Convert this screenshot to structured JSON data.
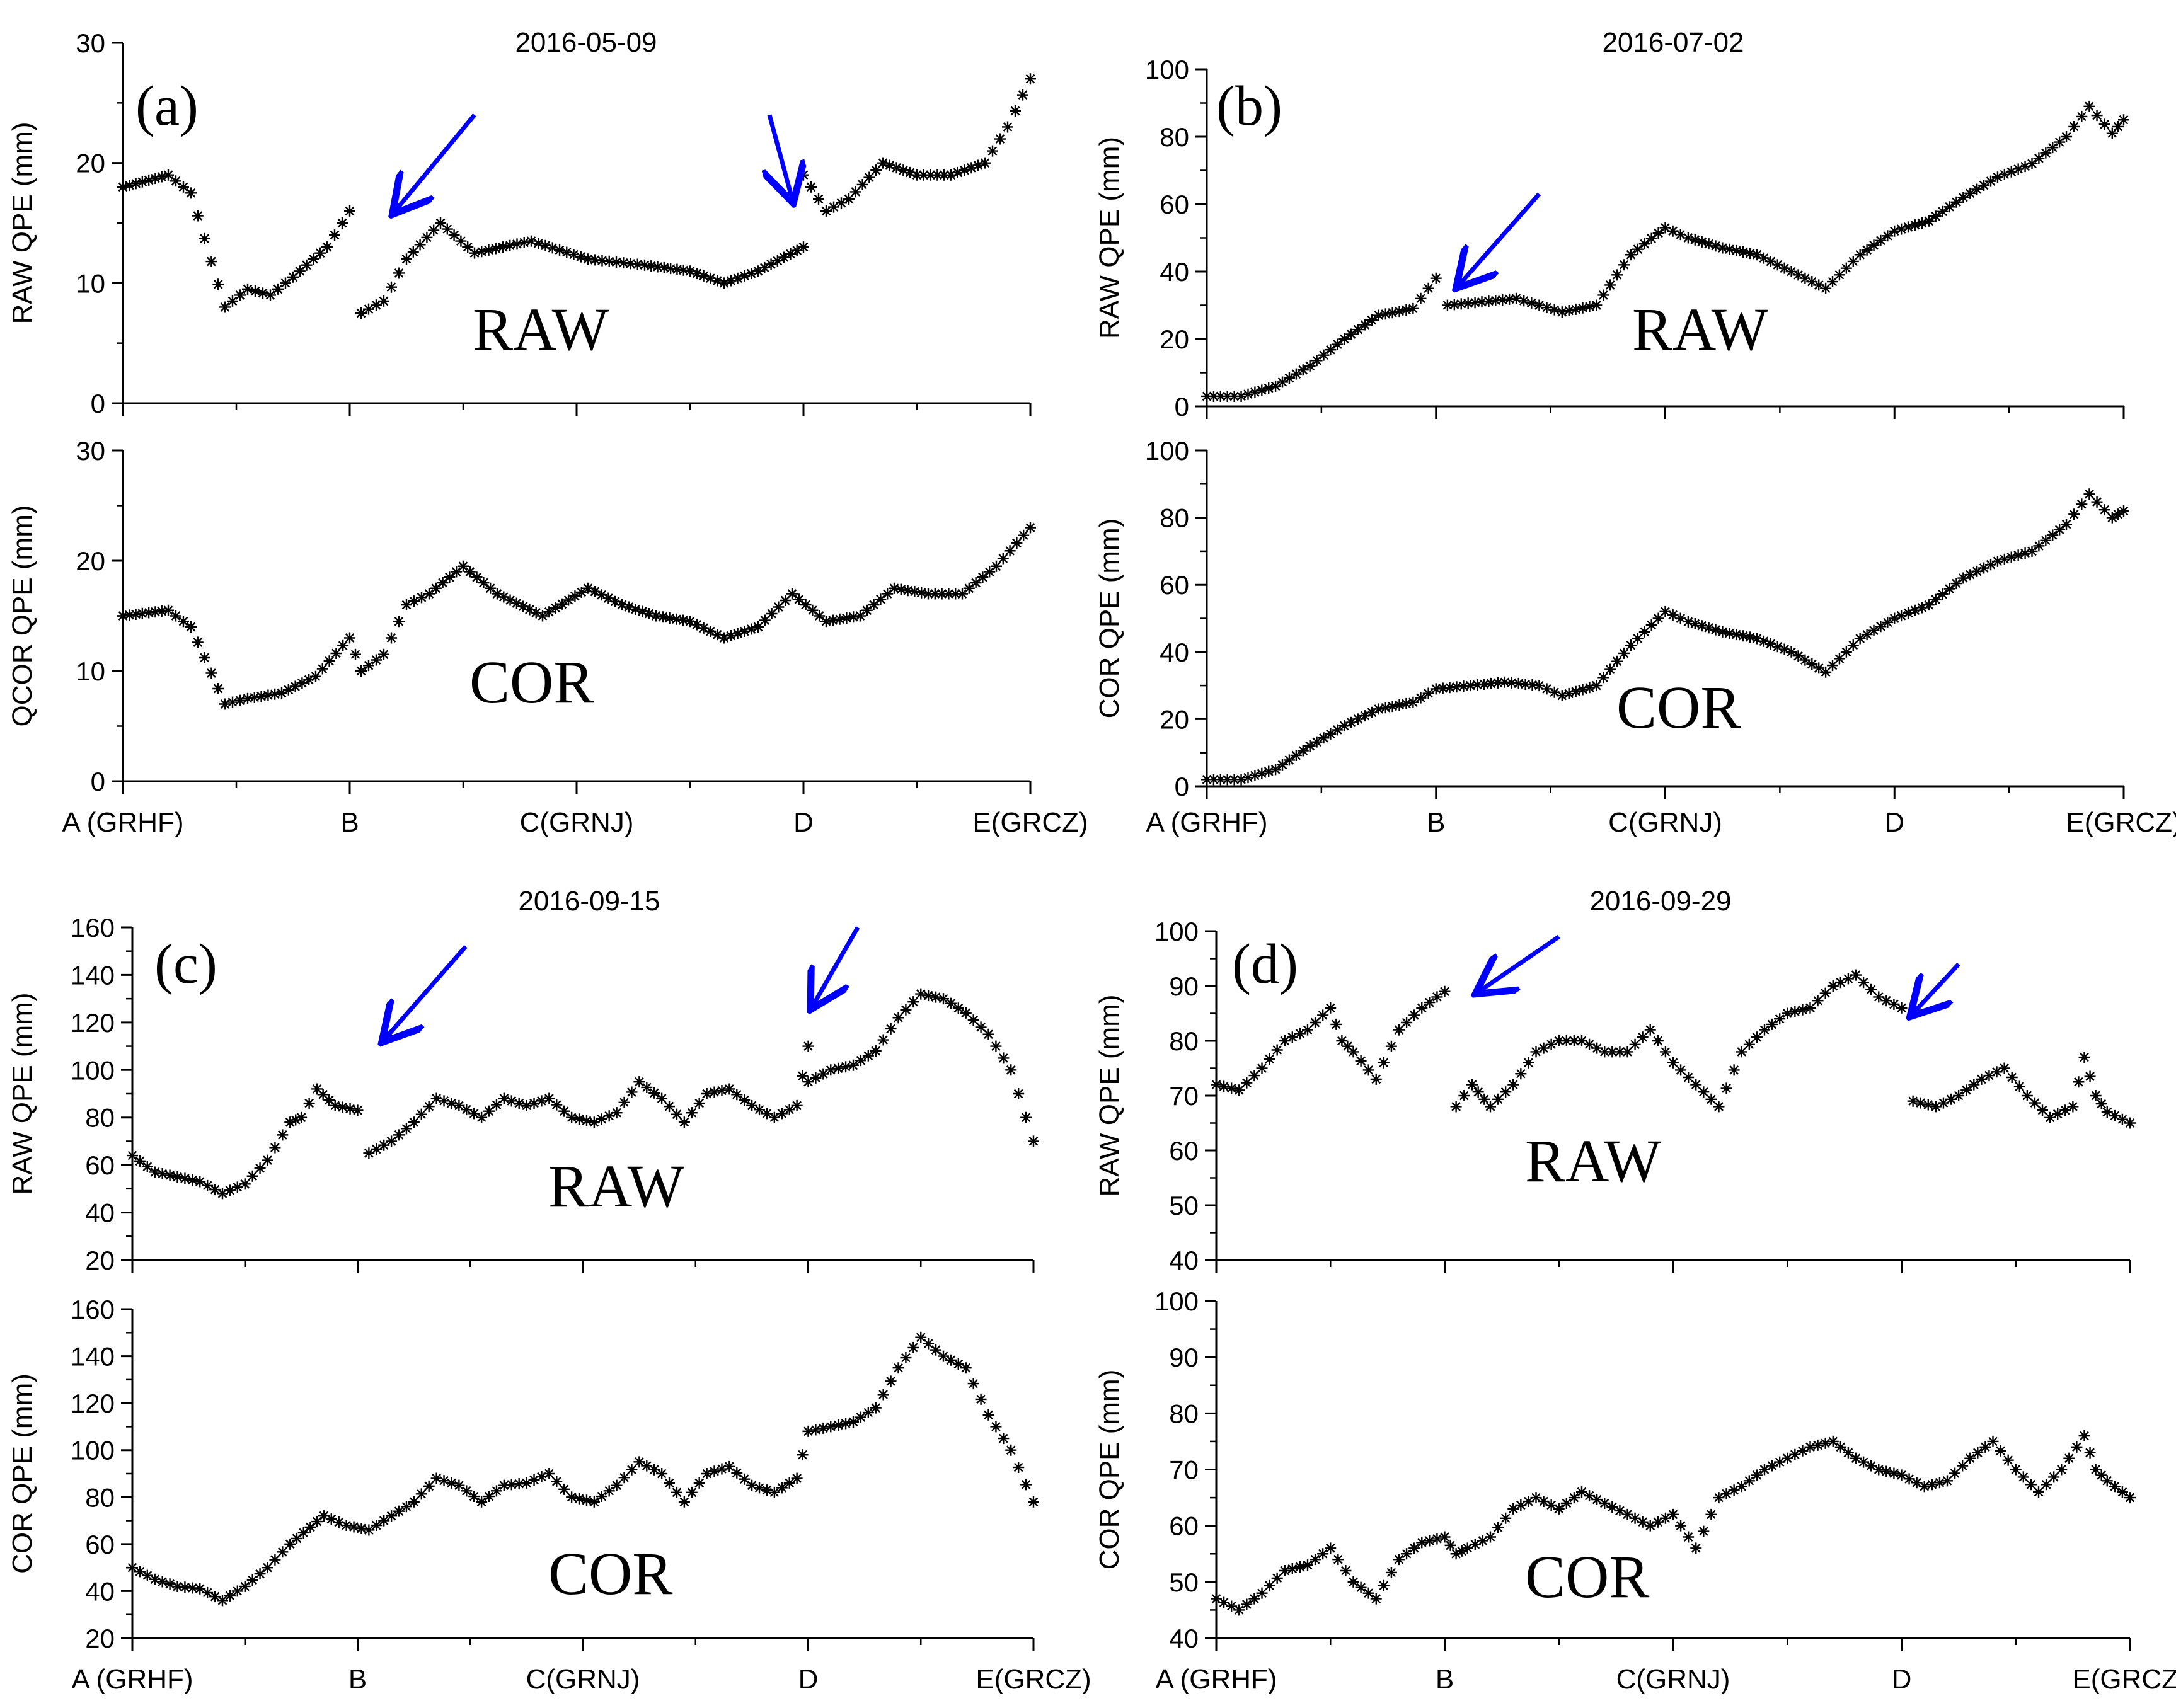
{
  "figure": {
    "arrow_color": "#0000ff",
    "marker_color": "#000000",
    "marker_symbol": "asterisk"
  },
  "chart_data": [
    {
      "id": "a",
      "panel_label": "(a)",
      "title": "2016-05-09",
      "x_ticks": [
        "A (GRHF)",
        "B",
        "C(GRNJ)",
        "D",
        "E(GRCZ)"
      ],
      "subplots": [
        {
          "type": "scatter",
          "series_label": "RAW",
          "ylabel": "RAW QPE (mm)",
          "ylim": [
            0,
            30
          ],
          "y_ticks": [
            0,
            10,
            20,
            30
          ],
          "arrows": [
            {
              "from": [
                1.55,
                24
              ],
              "to": [
                1.2,
                16
              ]
            },
            {
              "from": [
                2.85,
                24
              ],
              "to": [
                2.95,
                17
              ]
            }
          ],
          "series": [
            {
              "name": "A-B",
              "x": [
                0,
                0.2,
                0.3,
                0.45,
                0.55,
                0.65,
                0.75,
                0.9,
                1.0
              ],
              "y": [
                18,
                19,
                17.5,
                8,
                9.5,
                9,
                10.5,
                13,
                16
              ]
            },
            {
              "name": "B-D",
              "x": [
                1.05,
                1.15,
                1.25,
                1.4,
                1.55,
                1.8,
                2.05,
                2.3,
                2.5,
                2.65,
                2.8,
                3.0
              ],
              "y": [
                7.5,
                8.5,
                12,
                15,
                12.5,
                13.5,
                12,
                11.5,
                11,
                10,
                11,
                13
              ]
            },
            {
              "name": "D-E",
              "x": [
                3.0,
                3.1,
                3.2,
                3.35,
                3.5,
                3.65,
                3.8,
                3.9,
                4.0
              ],
              "y": [
                19,
                16,
                17,
                20,
                19,
                19,
                20,
                23,
                27
              ]
            }
          ]
        },
        {
          "type": "scatter",
          "series_label": "COR",
          "ylabel": "QCOR QPE (mm)",
          "ylim": [
            0,
            30
          ],
          "y_ticks": [
            0,
            10,
            20,
            30
          ],
          "arrows": [],
          "series": [
            {
              "name": "all",
              "x": [
                0,
                0.2,
                0.3,
                0.45,
                0.55,
                0.7,
                0.85,
                1.0,
                1.05,
                1.15,
                1.25,
                1.35,
                1.5,
                1.65,
                1.85,
                2.05,
                2.2,
                2.35,
                2.5,
                2.65,
                2.8,
                2.95,
                3.1,
                3.25,
                3.4,
                3.55,
                3.7,
                3.85,
                4.0
              ],
              "y": [
                15,
                15.5,
                14,
                7,
                7.5,
                8,
                9.5,
                13,
                10,
                11.5,
                16,
                17,
                19.5,
                17,
                15,
                17.5,
                16,
                15,
                14.5,
                13,
                14,
                17,
                14.5,
                15,
                17.5,
                17,
                17,
                19.5,
                23
              ]
            }
          ]
        }
      ]
    },
    {
      "id": "b",
      "panel_label": "(b)",
      "title": "2016-07-02",
      "x_ticks": [
        "A (GRHF)",
        "B",
        "C(GRNJ)",
        "D",
        "E(GRCZ)"
      ],
      "subplots": [
        {
          "type": "scatter",
          "series_label": "RAW",
          "ylabel": "RAW QPE (mm)",
          "ylim": [
            0,
            100
          ],
          "y_ticks": [
            0,
            20,
            40,
            60,
            80,
            100
          ],
          "arrows": [
            {
              "from": [
                1.45,
                63
              ],
              "to": [
                1.1,
                36
              ]
            }
          ],
          "series": [
            {
              "name": "A-B",
              "x": [
                0,
                0.15,
                0.3,
                0.45,
                0.6,
                0.75,
                0.9,
                1.0
              ],
              "y": [
                3,
                3,
                6,
                12,
                20,
                27,
                29,
                38
              ]
            },
            {
              "name": "B-E",
              "x": [
                1.05,
                1.2,
                1.35,
                1.45,
                1.55,
                1.7,
                1.85,
                2.0,
                2.1,
                2.25,
                2.4,
                2.55,
                2.7,
                2.85,
                3.0,
                3.15,
                3.3,
                3.45,
                3.6,
                3.75,
                3.85,
                3.95,
                4.0
              ],
              "y": [
                30,
                31,
                32,
                30,
                28,
                30,
                45,
                53,
                50,
                47,
                45,
                40,
                35,
                45,
                52,
                55,
                62,
                68,
                72,
                80,
                89,
                81,
                85
              ]
            }
          ]
        },
        {
          "type": "scatter",
          "series_label": "COR",
          "ylabel": "COR QPE (mm)",
          "ylim": [
            0,
            100
          ],
          "y_ticks": [
            0,
            20,
            40,
            60,
            80,
            100
          ],
          "arrows": [],
          "series": [
            {
              "name": "all",
              "x": [
                0,
                0.15,
                0.3,
                0.45,
                0.6,
                0.75,
                0.9,
                1.0,
                1.15,
                1.3,
                1.45,
                1.55,
                1.7,
                1.85,
                2.0,
                2.1,
                2.25,
                2.4,
                2.55,
                2.7,
                2.85,
                3.0,
                3.15,
                3.3,
                3.45,
                3.6,
                3.75,
                3.85,
                3.95,
                4.0
              ],
              "y": [
                2,
                2,
                5,
                12,
                18,
                23,
                25,
                29,
                30,
                31,
                30,
                27,
                30,
                42,
                52,
                49,
                46,
                44,
                40,
                34,
                44,
                50,
                54,
                62,
                67,
                70,
                78,
                87,
                80,
                82
              ]
            }
          ]
        }
      ]
    },
    {
      "id": "c",
      "panel_label": "(c)",
      "title": "2016-09-15",
      "x_ticks": [
        "A (GRHF)",
        "B",
        "C(GRNJ)",
        "D",
        "E(GRCZ)"
      ],
      "subplots": [
        {
          "type": "scatter",
          "series_label": "RAW",
          "ylabel": "RAW QPE (mm)",
          "ylim": [
            20,
            160
          ],
          "y_ticks": [
            20,
            40,
            60,
            80,
            100,
            120,
            140,
            160
          ],
          "arrows": [
            {
              "from": [
                1.48,
                152
              ],
              "to": [
                1.12,
                113
              ]
            },
            {
              "from": [
                3.22,
                160
              ],
              "to": [
                3.02,
                127
              ]
            }
          ],
          "series": [
            {
              "name": "A-B",
              "x": [
                0,
                0.1,
                0.2,
                0.3,
                0.4,
                0.5,
                0.6,
                0.7,
                0.75,
                0.82,
                0.9,
                1.0
              ],
              "y": [
                64,
                57,
                55,
                53,
                48,
                52,
                62,
                78,
                80,
                92,
                85,
                83
              ]
            },
            {
              "name": "B-D",
              "x": [
                1.05,
                1.15,
                1.25,
                1.35,
                1.45,
                1.55,
                1.65,
                1.75,
                1.85,
                1.95,
                2.05,
                2.15,
                2.25,
                2.35,
                2.45,
                2.55,
                2.65,
                2.75,
                2.85,
                2.95,
                3.0
              ],
              "y": [
                65,
                70,
                78,
                88,
                85,
                80,
                88,
                85,
                88,
                80,
                78,
                82,
                95,
                88,
                78,
                90,
                92,
                85,
                80,
                85,
                110
              ]
            },
            {
              "name": "D-E",
              "x": [
                3.0,
                3.1,
                3.2,
                3.3,
                3.4,
                3.5,
                3.6,
                3.7,
                3.8,
                3.9,
                4.0
              ],
              "y": [
                95,
                100,
                102,
                108,
                122,
                132,
                130,
                124,
                115,
                100,
                70
              ]
            }
          ]
        },
        {
          "type": "scatter",
          "series_label": "COR",
          "ylabel": "COR QPE (mm)",
          "ylim": [
            20,
            160
          ],
          "y_ticks": [
            20,
            40,
            60,
            80,
            100,
            120,
            140,
            160
          ],
          "arrows": [],
          "series": [
            {
              "name": "all",
              "x": [
                0,
                0.1,
                0.2,
                0.3,
                0.4,
                0.5,
                0.6,
                0.7,
                0.85,
                0.95,
                1.05,
                1.15,
                1.25,
                1.35,
                1.45,
                1.55,
                1.65,
                1.75,
                1.85,
                1.95,
                2.05,
                2.15,
                2.25,
                2.35,
                2.45,
                2.55,
                2.65,
                2.75,
                2.85,
                2.95,
                3.0,
                3.1,
                3.2,
                3.3,
                3.4,
                3.5,
                3.6,
                3.7,
                3.8,
                3.9,
                4.0
              ],
              "y": [
                50,
                45,
                42,
                41,
                36,
                42,
                50,
                60,
                72,
                68,
                66,
                72,
                78,
                88,
                85,
                78,
                85,
                86,
                90,
                80,
                78,
                85,
                95,
                90,
                78,
                90,
                93,
                85,
                82,
                88,
                108,
                110,
                112,
                118,
                135,
                148,
                140,
                135,
                115,
                100,
                78
              ]
            }
          ]
        }
      ]
    },
    {
      "id": "d",
      "panel_label": "(d)",
      "title": "2016-09-29",
      "x_ticks": [
        "A (GRHF)",
        "B",
        "C(GRNJ)",
        "D",
        "E(GRCZ)"
      ],
      "subplots": [
        {
          "type": "scatter",
          "series_label": "RAW",
          "ylabel": "RAW QPE (mm)",
          "ylim": [
            40,
            100
          ],
          "y_ticks": [
            40,
            50,
            60,
            70,
            80,
            90,
            100
          ],
          "arrows": [
            {
              "from": [
                1.5,
                99
              ],
              "to": [
                1.15,
                89
              ]
            },
            {
              "from": [
                3.25,
                94
              ],
              "to": [
                3.05,
                85
              ]
            }
          ],
          "series": [
            {
              "name": "A-B",
              "x": [
                0,
                0.1,
                0.2,
                0.3,
                0.4,
                0.5,
                0.55,
                0.6,
                0.7,
                0.8,
                0.9,
                1.0
              ],
              "y": [
                72,
                71,
                75,
                80,
                82,
                86,
                80,
                78,
                73,
                82,
                86,
                89
              ]
            },
            {
              "name": "B-D",
              "x": [
                1.05,
                1.12,
                1.2,
                1.3,
                1.4,
                1.5,
                1.6,
                1.7,
                1.8,
                1.9,
                2.0,
                2.1,
                2.2,
                2.3,
                2.4,
                2.5,
                2.6,
                2.7,
                2.8,
                2.9,
                3.0
              ],
              "y": [
                68,
                72,
                68,
                72,
                78,
                80,
                80,
                78,
                78,
                82,
                76,
                72,
                68,
                78,
                82,
                85,
                86,
                90,
                92,
                88,
                86
              ]
            },
            {
              "name": "D-E",
              "x": [
                3.05,
                3.15,
                3.25,
                3.35,
                3.45,
                3.55,
                3.65,
                3.75,
                3.8,
                3.85,
                3.9,
                4.0
              ],
              "y": [
                69,
                68,
                70,
                73,
                75,
                70,
                66,
                68,
                77,
                70,
                67,
                65
              ]
            }
          ]
        },
        {
          "type": "scatter",
          "series_label": "COR",
          "ylabel": "COR QPE (mm)",
          "ylim": [
            40,
            100
          ],
          "y_ticks": [
            40,
            50,
            60,
            70,
            80,
            90,
            100
          ],
          "arrows": [],
          "series": [
            {
              "name": "all",
              "x": [
                0,
                0.1,
                0.2,
                0.3,
                0.4,
                0.5,
                0.6,
                0.7,
                0.8,
                0.9,
                1.0,
                1.05,
                1.1,
                1.2,
                1.3,
                1.4,
                1.5,
                1.6,
                1.7,
                1.8,
                1.9,
                2.0,
                2.1,
                2.2,
                2.3,
                2.4,
                2.5,
                2.6,
                2.7,
                2.8,
                2.9,
                3.0,
                3.1,
                3.2,
                3.3,
                3.4,
                3.5,
                3.6,
                3.7,
                3.8,
                3.85,
                3.9,
                4.0
              ],
              "y": [
                47,
                45,
                48,
                52,
                53,
                56,
                50,
                47,
                54,
                57,
                58,
                55,
                56,
                58,
                63,
                65,
                63,
                66,
                64,
                62,
                60,
                62,
                56,
                65,
                67,
                70,
                72,
                74,
                75,
                72,
                70,
                69,
                67,
                68,
                72,
                75,
                70,
                66,
                70,
                76,
                70,
                68,
                65
              ]
            }
          ]
        }
      ]
    }
  ]
}
